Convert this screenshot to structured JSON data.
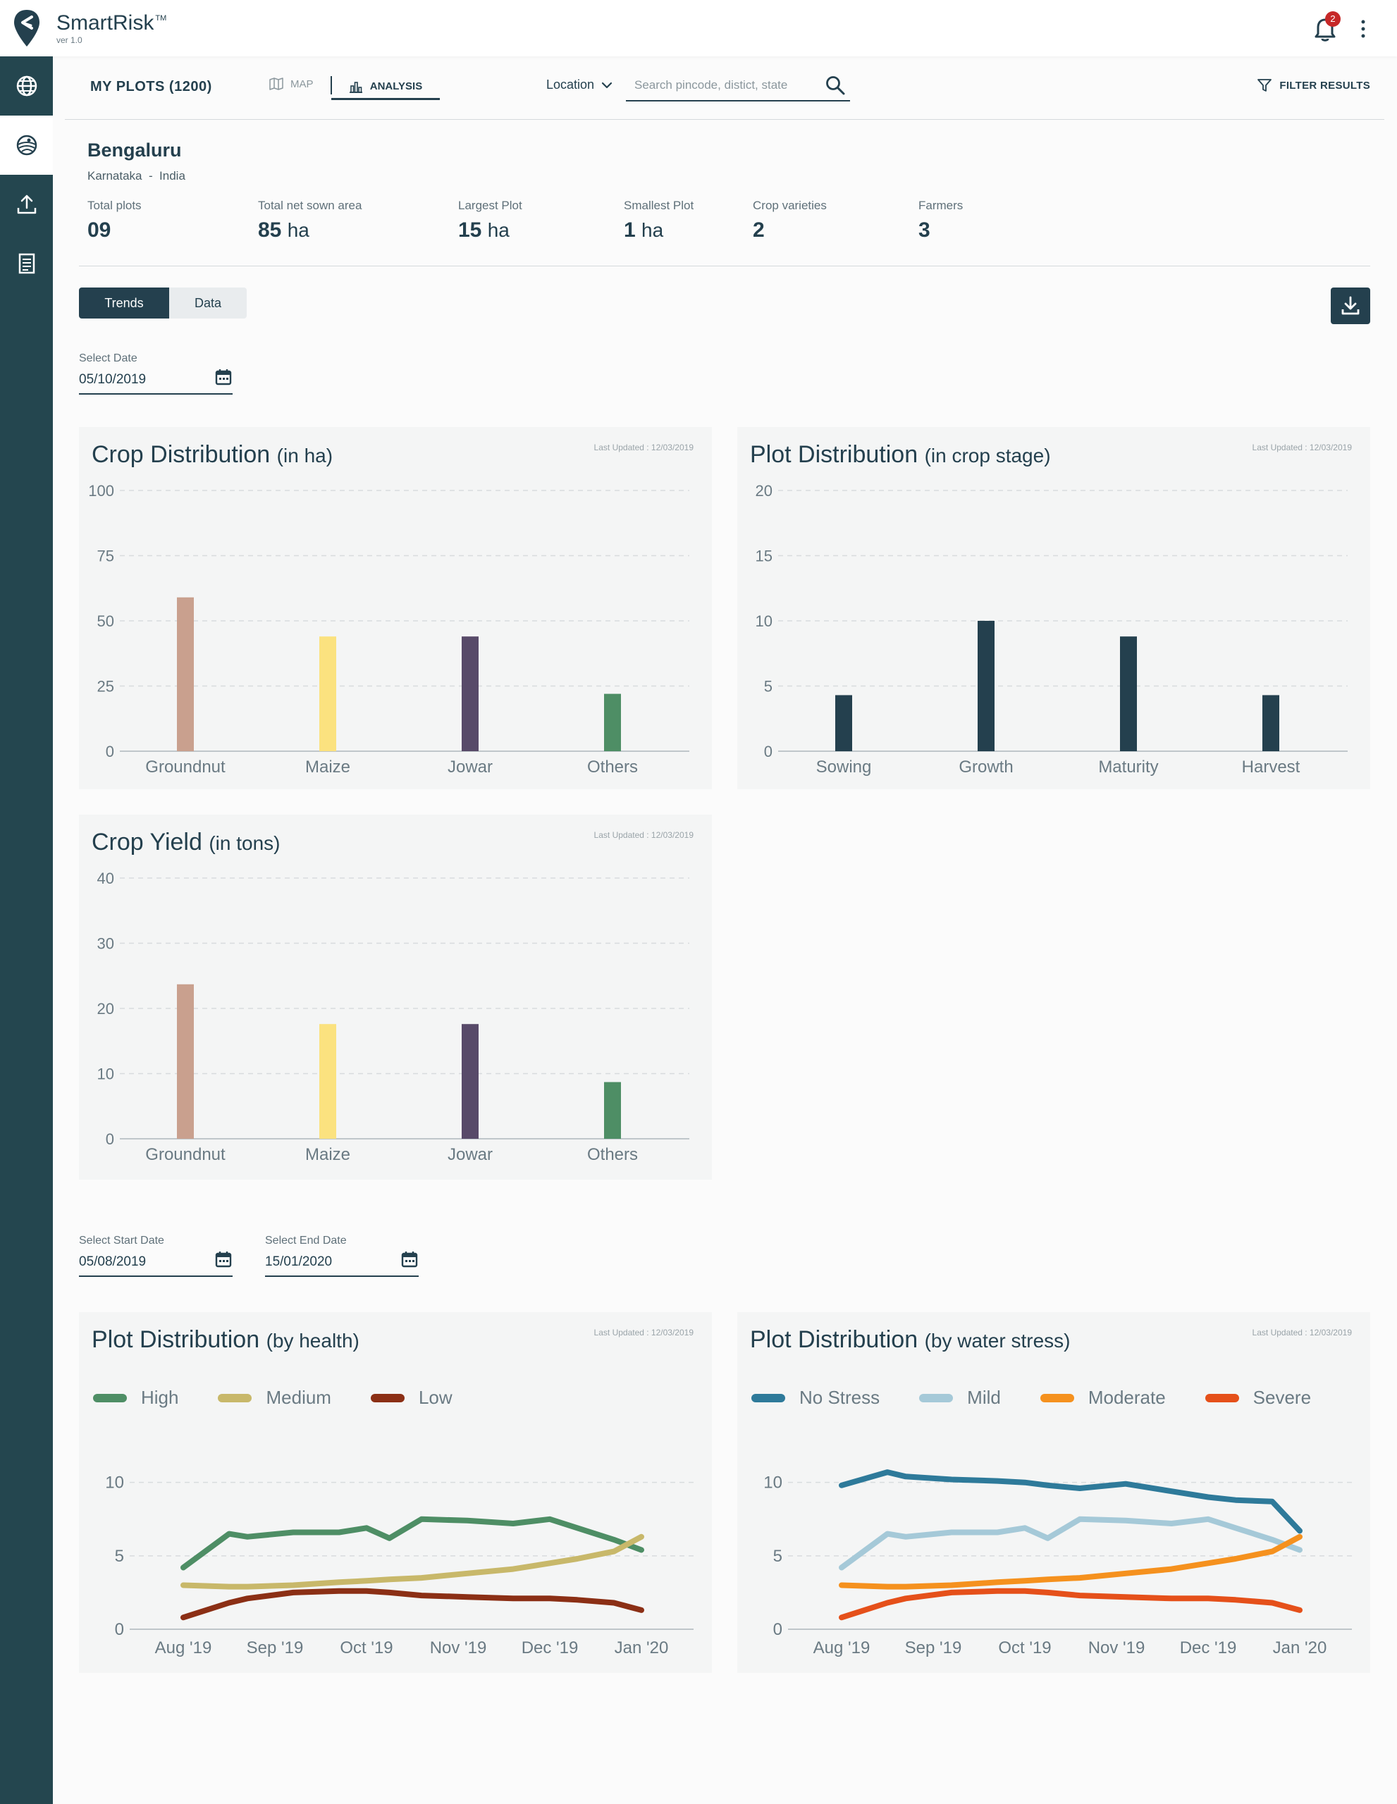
{
  "app": {
    "name": "SmartRisk",
    "trademark": "TM",
    "version": "ver 1.0",
    "notifications": "2"
  },
  "toolbar": {
    "my_plots": "MY PLOTS (1200)",
    "tab_map": "MAP",
    "tab_analysis": "ANALYSIS",
    "location_label": "Location",
    "search_placeholder": "Search pincode, distict, state",
    "filter_label": "FILTER RESULTS"
  },
  "summary": {
    "city": "Bengaluru",
    "region": "Karnataka  -  India",
    "stats": [
      {
        "label": "Total plots",
        "value": "09",
        "unit": ""
      },
      {
        "label": "Total net sown area",
        "value": "85",
        "unit": "ha"
      },
      {
        "label": "Largest Plot",
        "value": "15",
        "unit": "ha"
      },
      {
        "label": "Smallest Plot",
        "value": "1",
        "unit": "ha"
      },
      {
        "label": "Crop varieties",
        "value": "2",
        "unit": ""
      },
      {
        "label": "Farmers",
        "value": "3",
        "unit": ""
      }
    ]
  },
  "view_toggle": {
    "trends": "Trends",
    "data": "Data"
  },
  "date_select": {
    "label": "Select Date",
    "value": "05/10/2019"
  },
  "range_select": {
    "start_label": "Select Start Date",
    "start_value": "05/08/2019",
    "end_label": "Select End Date",
    "end_value": "15/01/2020"
  },
  "last_updated": "Last Updated : 12/03/2019",
  "colors": {
    "groundnut": "#c9a08e",
    "maize": "#fbe27f",
    "jowar": "#584a69",
    "others": "#4e8e65",
    "stage": "#24404e",
    "high": "#4e8e65",
    "medium": "#c8b86a",
    "low": "#8b2f15",
    "no_stress": "#2e7a9a",
    "mild": "#a5c9d8",
    "moderate": "#f5911e",
    "severe": "#e5501a"
  },
  "chart_data": [
    {
      "id": "crop_distribution",
      "type": "bar",
      "title": "Crop Distribution",
      "title_suffix": "(in ha)",
      "categories": [
        "Groundnut",
        "Maize",
        "Jowar",
        "Others"
      ],
      "values": [
        59,
        44,
        44,
        22
      ],
      "ylim": [
        0,
        100
      ],
      "yticks": [
        0,
        25,
        50,
        75,
        100
      ]
    },
    {
      "id": "plot_distribution_stage",
      "type": "bar",
      "title": "Plot Distribution",
      "title_suffix": "(in crop stage)",
      "categories": [
        "Sowing",
        "Growth",
        "Maturity",
        "Harvest"
      ],
      "values": [
        4.3,
        10,
        8.8,
        4.3
      ],
      "ylim": [
        0,
        20
      ],
      "yticks": [
        0,
        5,
        10,
        15,
        20
      ]
    },
    {
      "id": "crop_yield",
      "type": "bar",
      "title": "Crop Yield",
      "title_suffix": "(in tons)",
      "categories": [
        "Groundnut",
        "Maize",
        "Jowar",
        "Others"
      ],
      "values": [
        23.7,
        17.6,
        17.6,
        8.7
      ],
      "ylim": [
        0,
        40
      ],
      "yticks": [
        0,
        10,
        20,
        30,
        40
      ]
    },
    {
      "id": "plot_distribution_health",
      "type": "line",
      "title": "Plot Distribution",
      "title_suffix": "(by health)",
      "xticks": [
        "Aug '19",
        "Sep '19",
        "Oct '19",
        "Nov '19",
        "Dec '19",
        "Jan '20"
      ],
      "x": [
        0,
        0.5,
        0.7,
        1.2,
        1.7,
        2,
        2.25,
        2.6,
        3.1,
        3.6,
        4,
        4.3,
        4.7,
        5
      ],
      "ylim": [
        0,
        12
      ],
      "yticks": [
        0,
        5,
        10
      ],
      "series": [
        {
          "name": "High",
          "color_key": "high",
          "values": [
            4.2,
            6.5,
            6.3,
            6.6,
            6.6,
            6.9,
            6.2,
            7.5,
            7.4,
            7.2,
            7.5,
            6.9,
            6.1,
            5.4
          ]
        },
        {
          "name": "Medium",
          "color_key": "medium",
          "values": [
            3.0,
            2.9,
            2.9,
            3.0,
            3.2,
            3.3,
            3.4,
            3.5,
            3.8,
            4.1,
            4.5,
            4.8,
            5.3,
            6.3
          ]
        },
        {
          "name": "Low",
          "color_key": "low",
          "values": [
            0.8,
            1.8,
            2.1,
            2.5,
            2.6,
            2.6,
            2.5,
            2.3,
            2.2,
            2.1,
            2.1,
            2.0,
            1.8,
            1.3
          ]
        }
      ]
    },
    {
      "id": "plot_distribution_water_stress",
      "type": "line",
      "title": "Plot Distribution",
      "title_suffix": "(by water stress)",
      "xticks": [
        "Aug '19",
        "Sep '19",
        "Oct '19",
        "Nov '19",
        "Dec '19",
        "Jan '20"
      ],
      "x": [
        0,
        0.5,
        0.7,
        1.2,
        1.7,
        2,
        2.25,
        2.6,
        3.1,
        3.6,
        4,
        4.3,
        4.7,
        5
      ],
      "ylim": [
        0,
        12
      ],
      "yticks": [
        0,
        5,
        10
      ],
      "series": [
        {
          "name": "No Stress",
          "color_key": "no_stress",
          "values": [
            9.8,
            10.7,
            10.4,
            10.2,
            10.1,
            10.0,
            9.8,
            9.6,
            9.9,
            9.4,
            9.0,
            8.8,
            8.7,
            6.7
          ]
        },
        {
          "name": "Mild",
          "color_key": "mild",
          "values": [
            4.2,
            6.5,
            6.3,
            6.6,
            6.6,
            6.9,
            6.2,
            7.5,
            7.4,
            7.2,
            7.5,
            6.9,
            6.1,
            5.4
          ]
        },
        {
          "name": "Moderate",
          "color_key": "moderate",
          "values": [
            3.0,
            2.9,
            2.9,
            3.0,
            3.2,
            3.3,
            3.4,
            3.5,
            3.8,
            4.1,
            4.5,
            4.8,
            5.3,
            6.3
          ]
        },
        {
          "name": "Severe",
          "color_key": "severe",
          "values": [
            0.8,
            1.8,
            2.1,
            2.5,
            2.6,
            2.6,
            2.5,
            2.3,
            2.2,
            2.1,
            2.1,
            2.0,
            1.8,
            1.3
          ]
        }
      ]
    }
  ]
}
